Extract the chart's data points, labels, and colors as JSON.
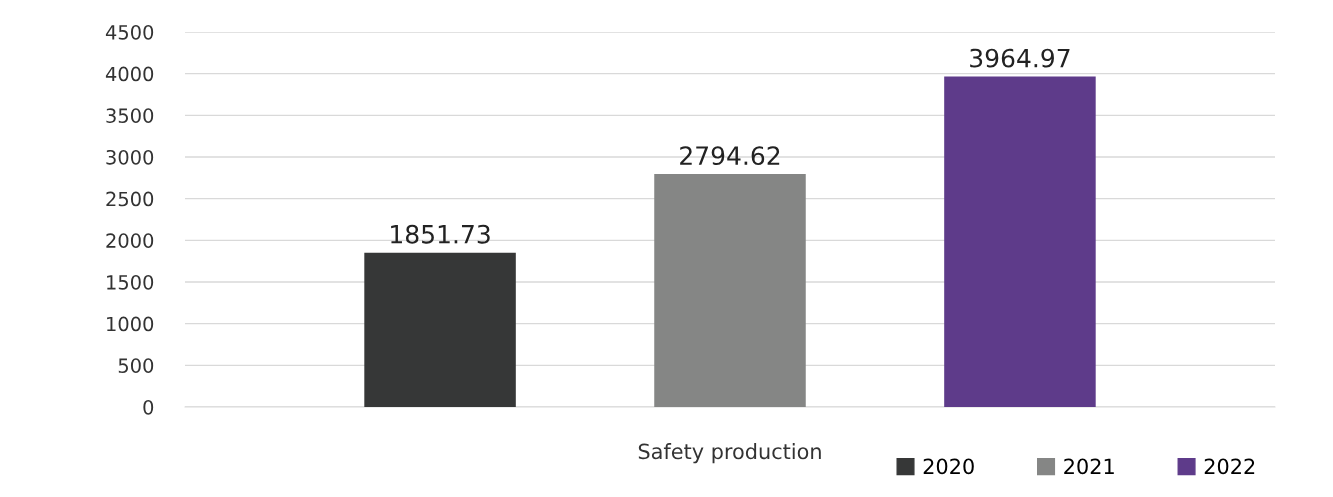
{
  "chart_data": {
    "type": "bar",
    "categories": [
      "Safety production"
    ],
    "series": [
      {
        "name": "2020",
        "color": "#363737",
        "values": [
          1851.73
        ]
      },
      {
        "name": "2021",
        "color": "#858685",
        "values": [
          2794.62
        ]
      },
      {
        "name": "2022",
        "color": "#5e3b8a",
        "values": [
          3964.97
        ]
      }
    ],
    "ylim": [
      0,
      4500
    ],
    "yticks": [
      0,
      500,
      1000,
      1500,
      2000,
      2500,
      3000,
      3500,
      4000,
      4500
    ],
    "grid": "y",
    "legend": "bottom right",
    "data_labels": true
  }
}
